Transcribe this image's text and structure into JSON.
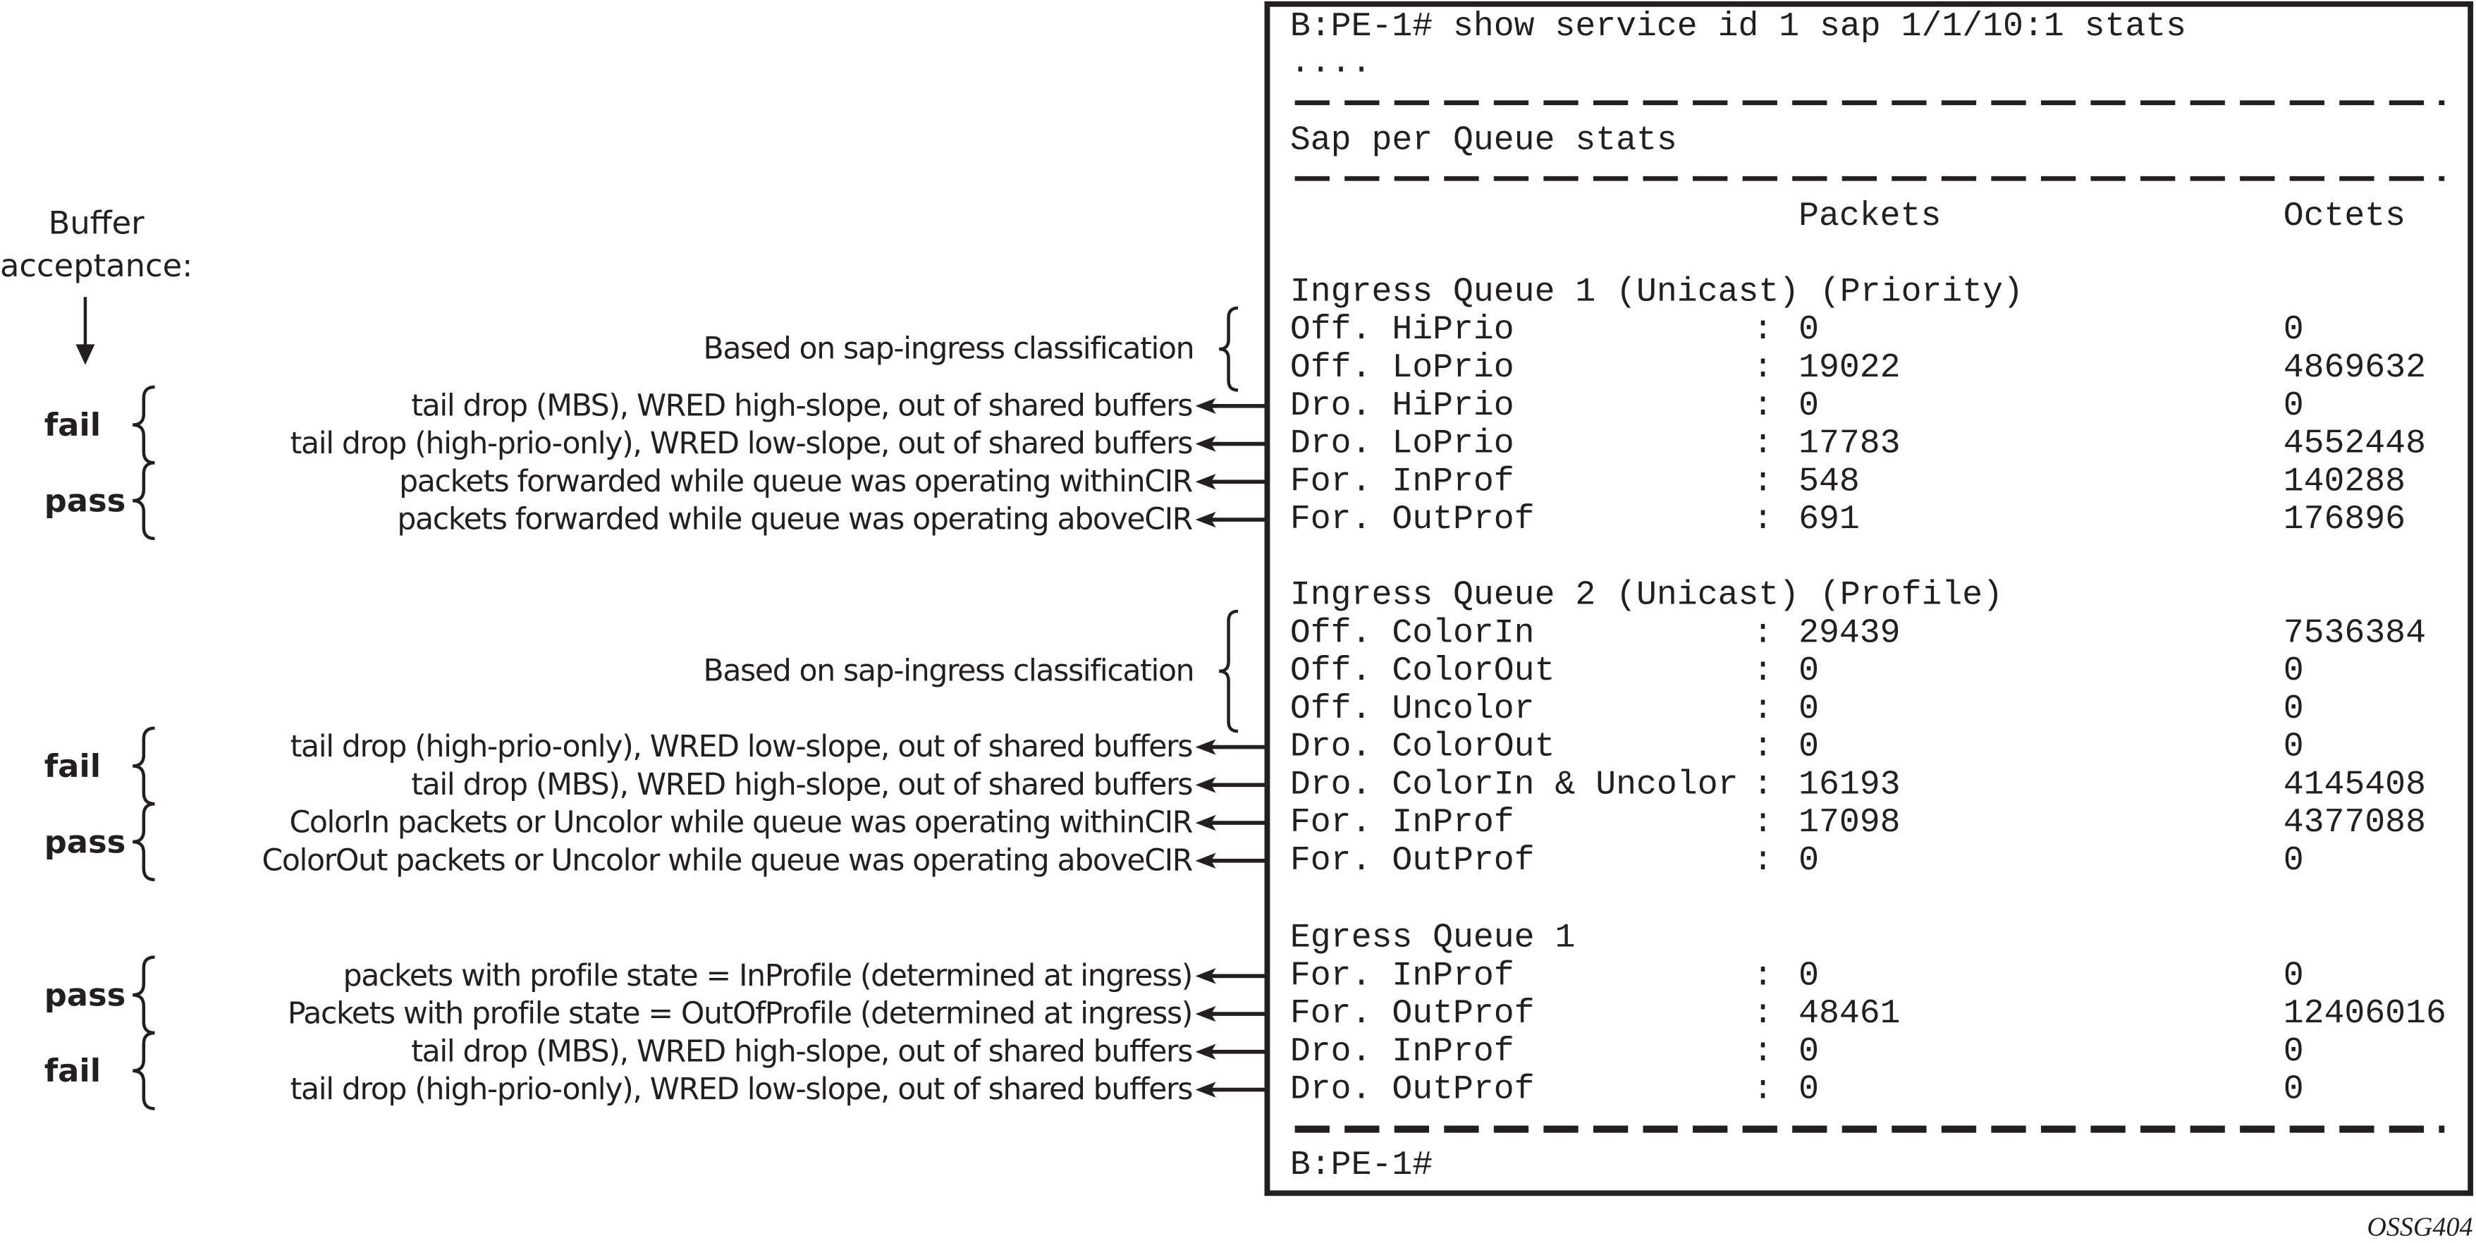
{
  "terminal": {
    "command": "B:PE-1# show service id 1 sap 1/1/10:1 stats",
    "ellipsis": "....",
    "section_title": "Sap per Queue stats",
    "headers": {
      "packets": "Packets",
      "octets": "Octets"
    },
    "queues": [
      {
        "title": "Ingress Queue 1 (Unicast) (Priority)",
        "rows": [
          {
            "label": "Off. HiPrio",
            "packets": "0",
            "octets": "0"
          },
          {
            "label": "Off. LoPrio",
            "packets": "19022",
            "octets": "4869632"
          },
          {
            "label": "Dro. HiPrio",
            "packets": "0",
            "octets": "0"
          },
          {
            "label": "Dro. LoPrio",
            "packets": "17783",
            "octets": "4552448"
          },
          {
            "label": "For. InProf",
            "packets": "548",
            "octets": "140288"
          },
          {
            "label": "For. OutProf",
            "packets": "691",
            "octets": "176896"
          }
        ]
      },
      {
        "title": "Ingress Queue 2 (Unicast) (Profile)",
        "rows": [
          {
            "label": "Off. ColorIn",
            "packets": "29439",
            "octets": "7536384"
          },
          {
            "label": "Off. ColorOut",
            "packets": "0",
            "octets": "0"
          },
          {
            "label": "Off. Uncolor",
            "packets": "0",
            "octets": "0"
          },
          {
            "label": "Dro. ColorOut",
            "packets": "0",
            "octets": "0"
          },
          {
            "label": "Dro. ColorIn & Uncolor",
            "packets": "16193",
            "octets": "4145408"
          },
          {
            "label": "For. InProf",
            "packets": "17098",
            "octets": "4377088"
          },
          {
            "label": "For. OutProf",
            "packets": "0",
            "octets": "0"
          }
        ]
      },
      {
        "title": "Egress Queue 1",
        "rows": [
          {
            "label": "For. InProf",
            "packets": "0",
            "octets": "0"
          },
          {
            "label": "For. OutProf",
            "packets": "48461",
            "octets": "12406016"
          },
          {
            "label": "Dro. InProf",
            "packets": "0",
            "octets": "0"
          },
          {
            "label": "Dro. OutProf",
            "packets": "0",
            "octets": "0"
          }
        ]
      }
    ],
    "prompt": "B:PE-1#"
  },
  "annotations": {
    "buffer_acceptance": [
      "Buffer",
      "acceptance:"
    ],
    "queues": [
      {
        "classification": "Based on sap-ingress classification",
        "groups": [
          {
            "label": "fail",
            "items": [
              "tail drop (MBS), WRED high-slope, out of shared buffers",
              "tail drop (high-prio-only), WRED low-slope, out of shared buffers"
            ]
          },
          {
            "label": "pass",
            "items": [
              "packets forwarded while queue was operating withinCIR",
              "packets forwarded while queue was operating aboveCIR"
            ]
          }
        ]
      },
      {
        "classification": "Based on sap-ingress classification",
        "groups": [
          {
            "label": "fail",
            "items": [
              "tail drop (high-prio-only), WRED low-slope, out of shared buffers",
              "tail drop (MBS), WRED high-slope, out of shared buffers"
            ]
          },
          {
            "label": "pass",
            "items": [
              "ColorIn packets or Uncolor while queue was operating withinCIR",
              "ColorOut packets or Uncolor while queue was operating aboveCIR"
            ]
          }
        ]
      },
      {
        "classification": "",
        "groups": [
          {
            "label": "pass",
            "items": [
              "packets with profile state = InProfile (determined at ingress)",
              "Packets with profile state = OutOfProfile (determined at ingress)"
            ]
          },
          {
            "label": "fail",
            "items": [
              "tail drop (MBS), WRED high-slope, out of shared buffers",
              "tail drop (high-prio-only), WRED low-slope, out of shared buffers"
            ]
          }
        ]
      }
    ]
  },
  "figure_id": "OSSG404",
  "colors": {
    "ink": "#231f20",
    "background": "#ffffff"
  }
}
